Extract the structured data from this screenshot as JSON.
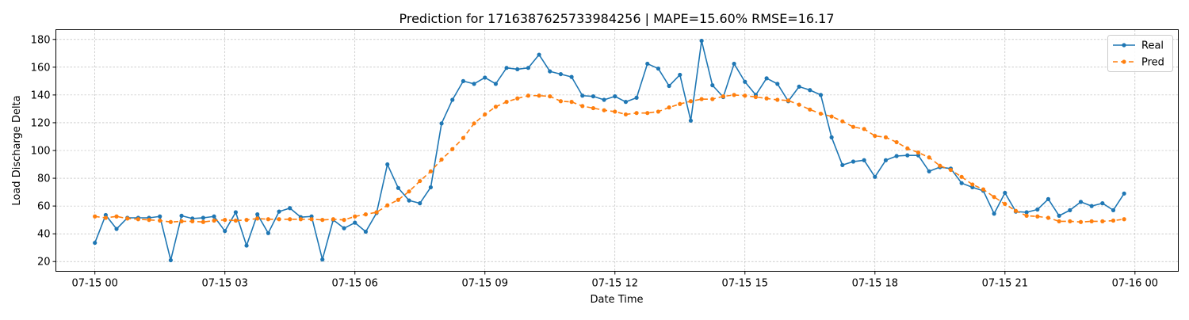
{
  "chart_data": {
    "type": "line",
    "title": "Prediction for 1716387625733984256  |  MAPE=15.60%  RMSE=16.17",
    "xlabel": "Date Time",
    "ylabel": "Load Discharge Delta",
    "x_unit": "hours since 07-15 00:00",
    "xlim": [
      -0.9,
      25.0
    ],
    "ylim": [
      13,
      187
    ],
    "xticks": [
      {
        "value": 0,
        "label": "07-15 00"
      },
      {
        "value": 3,
        "label": "07-15 03"
      },
      {
        "value": 6,
        "label": "07-15 06"
      },
      {
        "value": 9,
        "label": "07-15 09"
      },
      {
        "value": 12,
        "label": "07-15 12"
      },
      {
        "value": 15,
        "label": "07-15 15"
      },
      {
        "value": 18,
        "label": "07-15 18"
      },
      {
        "value": 21,
        "label": "07-15 21"
      },
      {
        "value": 24,
        "label": "07-16 00"
      }
    ],
    "yticks": [
      20,
      40,
      60,
      80,
      100,
      120,
      140,
      160,
      180
    ],
    "grid": true,
    "legend_position": "top-right",
    "x_step": 0.25,
    "series": [
      {
        "name": "Real",
        "color": "#1f77b4",
        "style": "solid",
        "values": [
          33.5,
          53.5,
          43.5,
          51.5,
          51.5,
          51.5,
          52.5,
          21,
          53,
          51,
          51.5,
          52.5,
          42,
          55.5,
          31.5,
          54,
          40.5,
          56,
          58.5,
          52,
          52.5,
          21.5,
          50,
          44,
          48,
          41.5,
          55,
          90,
          73,
          64,
          62,
          73.5,
          119.5,
          136.5,
          150,
          148,
          152.5,
          148,
          159.5,
          158.5,
          159.5,
          169,
          157,
          155,
          153,
          139.5,
          139,
          136.5,
          139,
          135,
          138,
          162.5,
          159,
          146.5,
          154.5,
          121.5,
          179,
          147,
          138.5,
          162.5,
          149.5,
          140,
          152,
          148,
          135.5,
          146,
          143.5,
          140,
          109.5,
          89.5,
          92,
          93,
          81,
          93,
          96,
          96.5,
          96.5,
          85,
          88,
          87,
          76.5,
          73.5,
          71,
          54.5,
          69.5,
          56,
          55.5,
          57.5,
          65,
          53,
          57,
          63,
          60,
          62,
          57,
          69
        ]
      },
      {
        "name": "Pred",
        "color": "#ff7f0e",
        "style": "dashed",
        "values": [
          52.5,
          51.5,
          52.5,
          51,
          50.5,
          50,
          49.5,
          48.5,
          49,
          49,
          48.5,
          49.5,
          50,
          49.5,
          50,
          51,
          50.5,
          50.5,
          50.5,
          50.5,
          50.5,
          50,
          50.5,
          50,
          52.5,
          54,
          55.5,
          60.5,
          64.5,
          70.5,
          78,
          85,
          93.5,
          101,
          109,
          119.5,
          126,
          131.5,
          135,
          137.5,
          139.5,
          139.5,
          139,
          135.5,
          135,
          132,
          130.5,
          129,
          128,
          126,
          127,
          127,
          128,
          131,
          133.5,
          135.5,
          137,
          137,
          139,
          140,
          139.5,
          138.5,
          137.5,
          136.5,
          136,
          133,
          129.5,
          126.5,
          124.5,
          121,
          117,
          115.5,
          110.5,
          109.5,
          106,
          101.5,
          98.5,
          95,
          89,
          86,
          81,
          75.5,
          72,
          66.5,
          61.5,
          56.5,
          53,
          52.5,
          51.5,
          49,
          49,
          48.5,
          49,
          49,
          49.5,
          50.5
        ]
      }
    ]
  }
}
